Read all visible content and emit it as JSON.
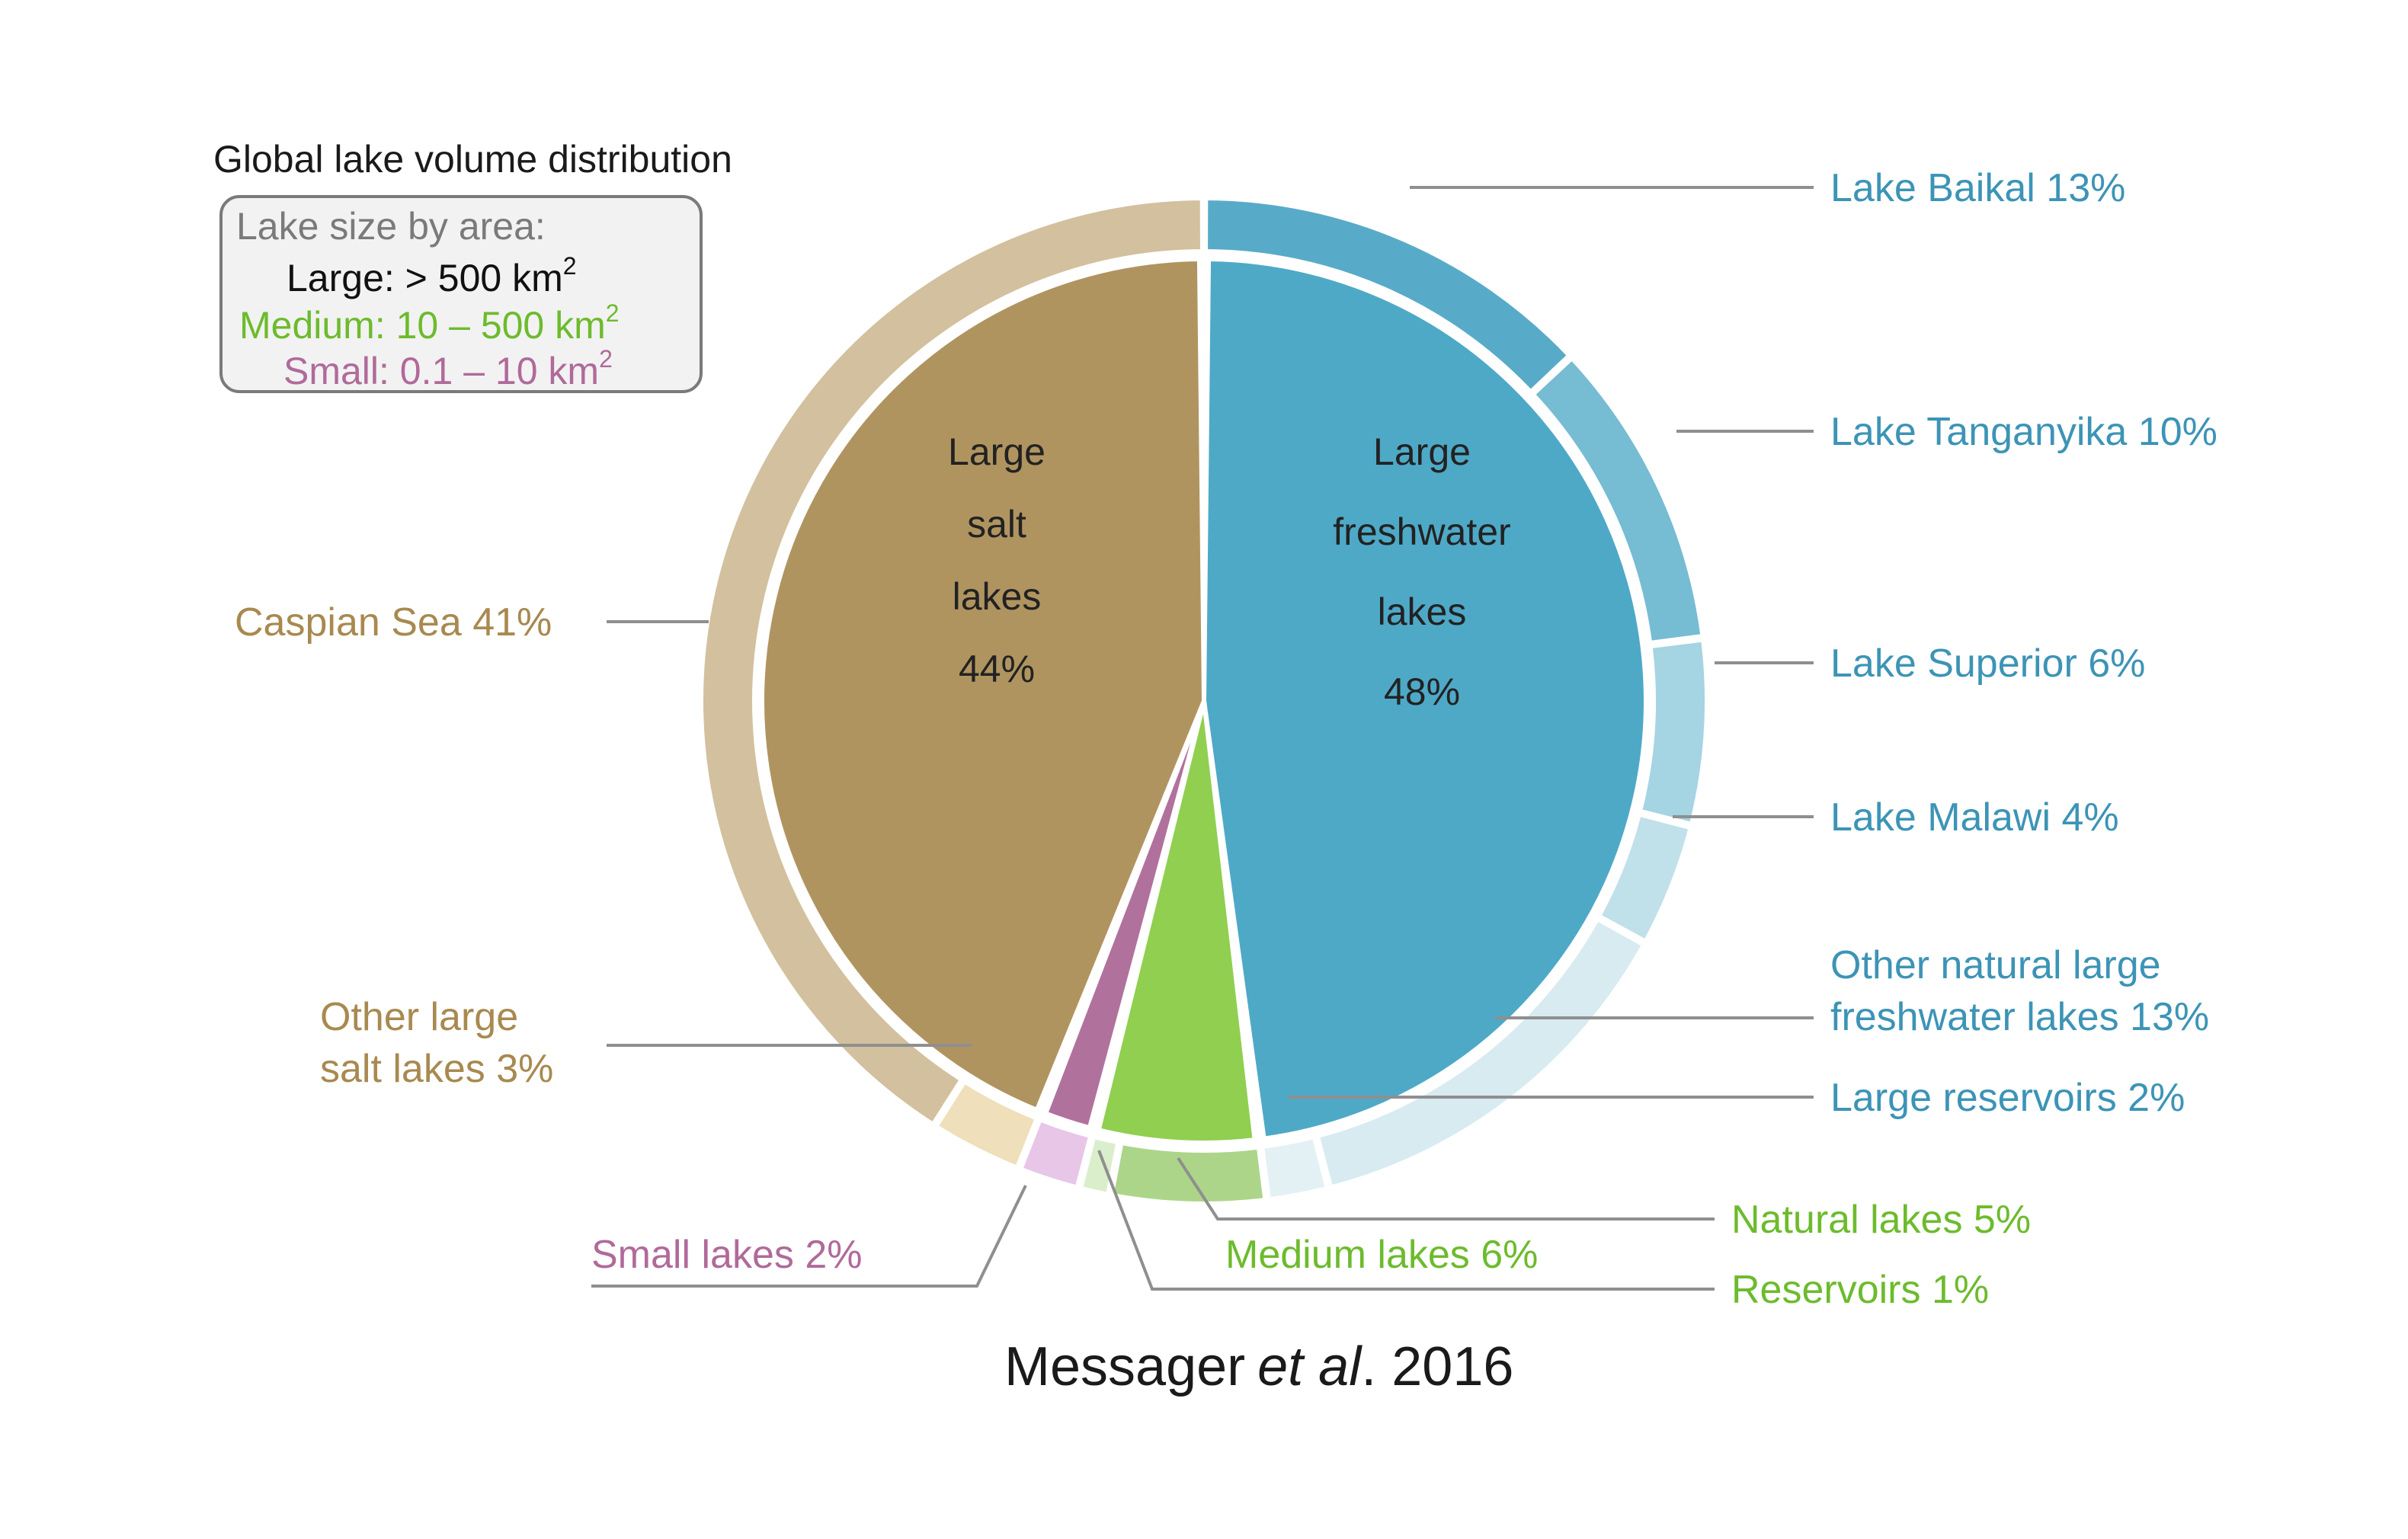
{
  "chart_data": {
    "type": "pie",
    "title": "Global lake volume distribution",
    "legend": {
      "heading": "Lake size by area:",
      "items": [
        {
          "text": "Large: > 500  km",
          "sup": "2",
          "color": "#111111"
        },
        {
          "text": "Medium: 10 – 500 km",
          "sup": "2",
          "color": "#6dbb2d"
        },
        {
          "text": "Small: 0.1 – 10 km",
          "sup": "2",
          "color": "#b06a9a"
        }
      ]
    },
    "inner_ring": [
      {
        "name": "Large freshwater lakes",
        "value": 48,
        "lines": [
          "Large",
          "freshwater",
          "lakes",
          "48%"
        ],
        "color": "#4ea9c7"
      },
      {
        "name": "Medium lakes",
        "value": 6,
        "color": "#90cf4f"
      },
      {
        "name": "Small lakes",
        "value": 2,
        "color": "#b1719d"
      },
      {
        "name": "Large salt lakes",
        "value": 44,
        "lines": [
          "Large",
          "salt",
          "lakes",
          "44%"
        ],
        "color": "#b09460"
      }
    ],
    "outer_ring": [
      {
        "label": "Lake Baikal 13%",
        "value": 13,
        "color": "#58abc8",
        "text_color": "#3c94b6"
      },
      {
        "label": "Lake Tanganyika 10%",
        "value": 10,
        "color": "#76bcd3",
        "text_color": "#3c94b6"
      },
      {
        "label": "Lake Superior 6%",
        "value": 6,
        "color": "#a5d4e3",
        "text_color": "#3c94b6"
      },
      {
        "label": "Lake Malawi 4%",
        "value": 4,
        "color": "#c0e0ea",
        "text_color": "#3c94b6"
      },
      {
        "label_lines": [
          "Other natural large",
          "freshwater lakes 13%"
        ],
        "value": 13,
        "color": "#d7ebf1",
        "text_color": "#3c94b6"
      },
      {
        "label": "Large reservoirs 2%",
        "value": 2,
        "color": "#e3f1f5",
        "text_color": "#3c94b6"
      },
      {
        "label": "Natural lakes 5%",
        "value": 5,
        "color": "#acd58a",
        "text_color": "#6dbb2d"
      },
      {
        "label": "Reservoirs 1%",
        "value": 1,
        "color": "#dbeecb",
        "text_color": "#6dbb2d"
      },
      {
        "label": "Small lakes 2%",
        "value": 2,
        "color": "#e7c6e8",
        "text_color": "#b06a9a"
      },
      {
        "label_lines": [
          "Other large",
          "salt lakes 3%"
        ],
        "value": 3,
        "color": "#efdfba",
        "text_color": "#a8894f"
      },
      {
        "label": "Caspian Sea 41%",
        "value": 41,
        "color": "#d3c09e",
        "text_color": "#a8894f"
      }
    ],
    "group_labels": [
      {
        "label": "Medium lakes 6%",
        "color": "#6dbb2d"
      }
    ]
  },
  "citation": {
    "author": "Messager",
    "etal": "et al",
    "year": ". 2016"
  }
}
